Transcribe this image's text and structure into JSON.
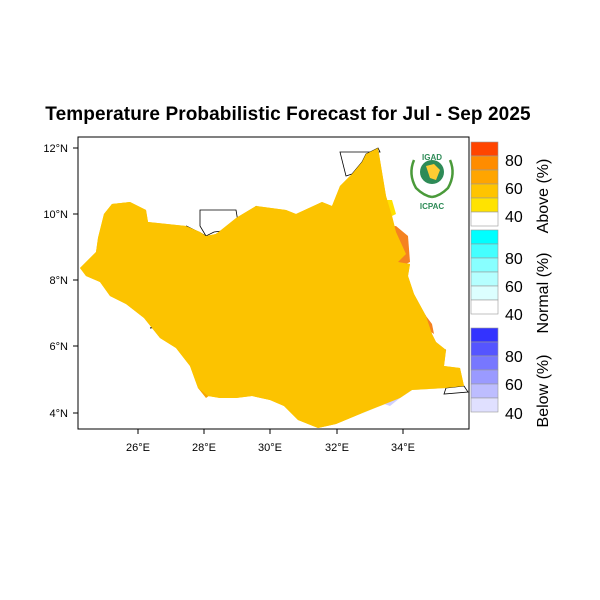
{
  "title": "Temperature Probabilistic Forecast for Jul - Sep 2025",
  "axes": {
    "lon_ticks": [
      "26°E",
      "28°E",
      "30°E",
      "32°E",
      "34°E"
    ],
    "lat_ticks": [
      "12°N",
      "10°N",
      "8°N",
      "6°N",
      "4°N"
    ]
  },
  "logo": {
    "top_text": "IGAD",
    "bottom_text": "ICPAC"
  },
  "legend": {
    "above": {
      "title": "Above (%)",
      "labels": [
        "80",
        "60",
        "40"
      ],
      "colors": [
        "#ff4500",
        "#ff8c00",
        "#ffa500",
        "#ffc400",
        "#ffe300",
        "#ffffff"
      ]
    },
    "normal": {
      "title": "Normal (%)",
      "labels": [
        "80",
        "60",
        "40"
      ],
      "colors": [
        "#00ffff",
        "#44ffff",
        "#88ffff",
        "#b5ffff",
        "#dcffff",
        "#ffffff"
      ]
    },
    "below": {
      "title": "Below (%)",
      "labels": [
        "80",
        "60",
        "40"
      ],
      "colors": [
        "#3333ff",
        "#5555ff",
        "#7777ff",
        "#9a9aff",
        "#bdbdff",
        "#e0e0ff"
      ]
    }
  },
  "map_colors": {
    "above_40": "#fcc300",
    "above_40_light": "#ffe100",
    "above_60": "#f7a500",
    "above_70": "#f58220",
    "normal_low": "#f0faff",
    "below_40": "#cfcfff"
  }
}
